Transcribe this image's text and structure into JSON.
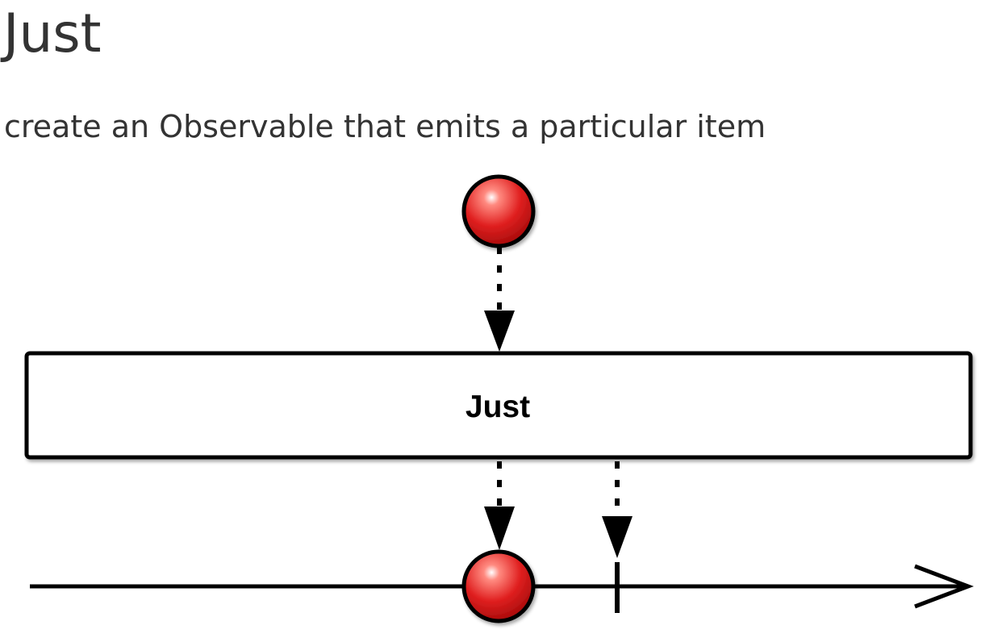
{
  "page": {
    "title": "Just",
    "subtitle": "create an Observable that emits a particular item"
  },
  "diagram": {
    "operator_label": "Just",
    "item_color": "#e02020"
  }
}
